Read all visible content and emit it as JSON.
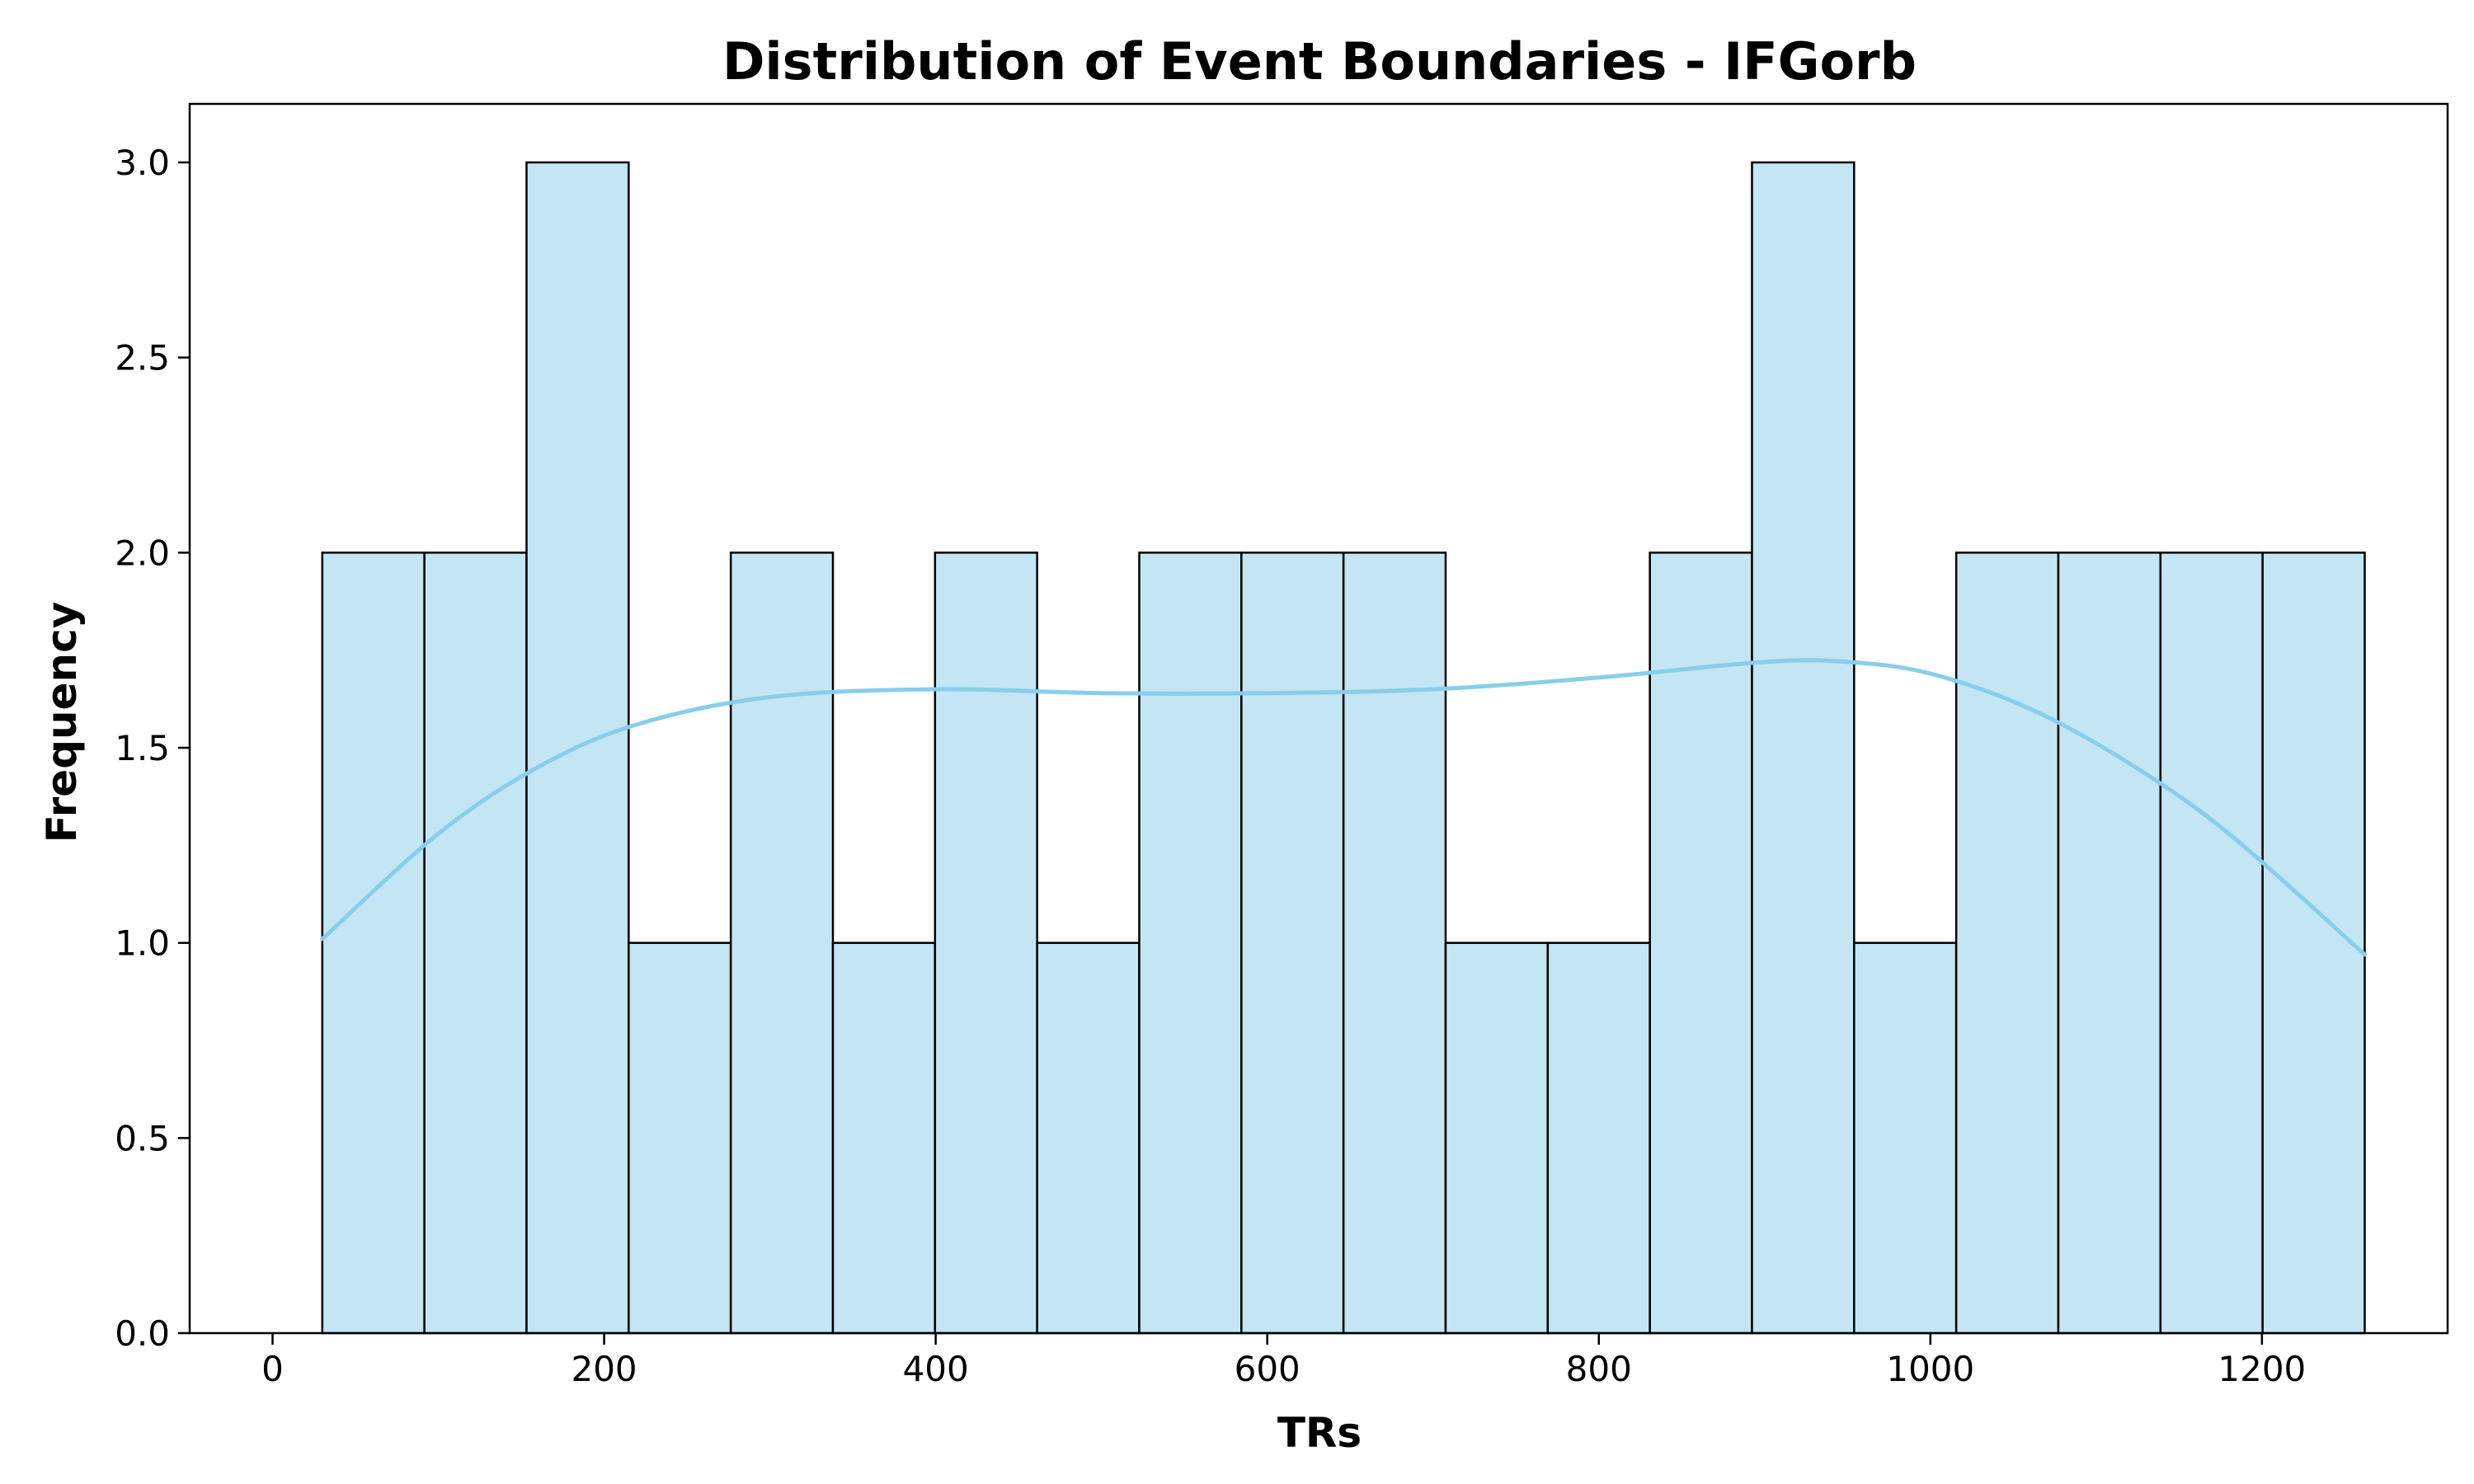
{
  "chart_data": {
    "type": "bar",
    "subtype": "histogram",
    "title": "Distribution of Event Boundaries - IFGorb",
    "xlabel": "TRs",
    "ylabel": "Frequency",
    "bin_edges": [
      30,
      91.6,
      153.2,
      214.8,
      276.4,
      338,
      399.6,
      461.2,
      522.8,
      584.4,
      646,
      707.6,
      769.2,
      830.8,
      892.4,
      954,
      1015.6,
      1077.2,
      1138.8,
      1200.4,
      1262
    ],
    "values": [
      2,
      2,
      3,
      1,
      2,
      1,
      2,
      1,
      2,
      2,
      2,
      1,
      1,
      2,
      3,
      1,
      2,
      2,
      2,
      2
    ],
    "kde": {
      "name": "",
      "x": [
        30,
        100,
        160,
        220,
        300,
        400,
        500,
        600,
        700,
        800,
        900,
        950,
        1000,
        1060,
        1120,
        1180,
        1262
      ],
      "y": [
        1.01,
        1.28,
        1.45,
        1.56,
        1.63,
        1.65,
        1.64,
        1.64,
        1.65,
        1.68,
        1.72,
        1.72,
        1.69,
        1.6,
        1.46,
        1.28,
        0.97
      ]
    },
    "xlim": [
      -50,
      1312
    ],
    "ylim": [
      0,
      3.15
    ],
    "xticks": [
      0,
      200,
      400,
      600,
      800,
      1000,
      1200
    ],
    "xtick_labels": [
      "0",
      "200",
      "400",
      "600",
      "800",
      "1000",
      "1200"
    ],
    "yticks": [
      0,
      0.5,
      1,
      1.5,
      2,
      2.5,
      3
    ],
    "ytick_labels": [
      "0.0",
      "0.5",
      "1.0",
      "1.5",
      "2.0",
      "2.5",
      "3.0"
    ],
    "grid": false,
    "legend": "none",
    "colors": {
      "bar_fill": "#c3e5f4",
      "bar_edge": "#000000",
      "kde_line": "#87ceeb",
      "axes": "#000000"
    }
  }
}
